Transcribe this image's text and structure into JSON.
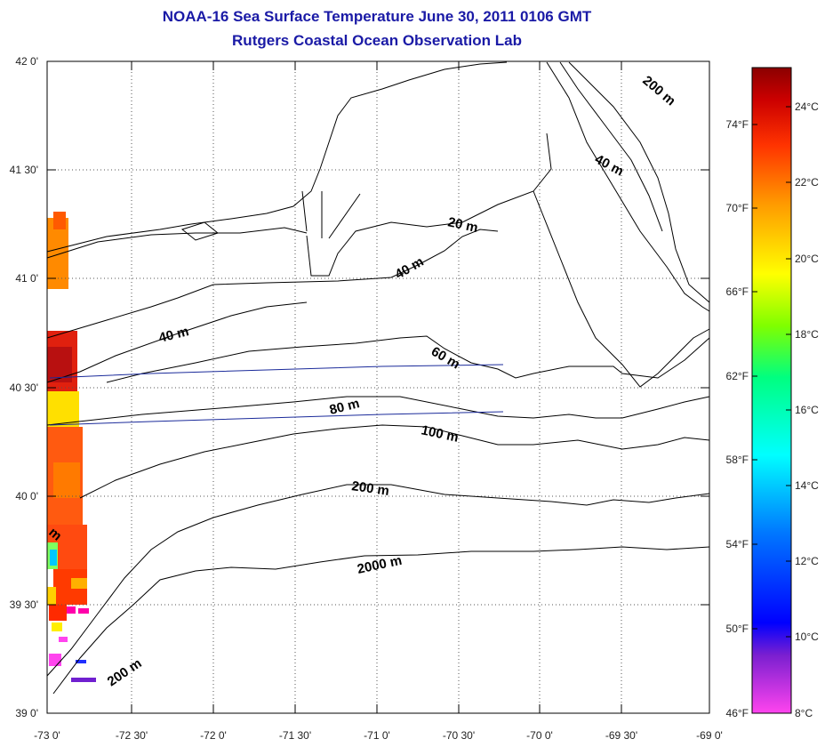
{
  "header": {
    "title": "NOAA-16 Sea Surface Temperature June 30, 2011 0106 GMT",
    "subtitle": "Rutgers Coastal Ocean Observation Lab"
  },
  "map": {
    "lon_labels": [
      "-73 0'",
      "-72 30'",
      "-72 0'",
      "-71 30'",
      "-71 0'",
      "-70 30'",
      "-70 0'",
      "-69 30'",
      "-69 0'"
    ],
    "lat_labels": [
      "42 0'",
      "41 30'",
      "41 0'",
      "40 30'",
      "40 0'",
      "39 30'",
      "39 0'"
    ],
    "depth_labels": [
      "200 m",
      "40 m",
      "20 m",
      "40 m",
      "40 m",
      "60 m",
      "80 m",
      "100 m",
      "200 m",
      "2000 m",
      "200 m",
      "m"
    ]
  },
  "colorbar": {
    "celsius_labels": [
      "24°C",
      "22°C",
      "20°C",
      "18°C",
      "16°C",
      "14°C",
      "12°C",
      "10°C",
      "8°C"
    ],
    "fahrenheit_labels": [
      "74°F",
      "70°F",
      "66°F",
      "62°F",
      "58°F",
      "54°F",
      "50°F",
      "46°F"
    ],
    "colors": [
      "#ff44ee",
      "#7a1fd0",
      "#0000ff",
      "#0078ff",
      "#00ffff",
      "#00ff80",
      "#7fff00",
      "#ffff00",
      "#ff9900",
      "#ff3300",
      "#cc0000",
      "#8b0000"
    ]
  }
}
